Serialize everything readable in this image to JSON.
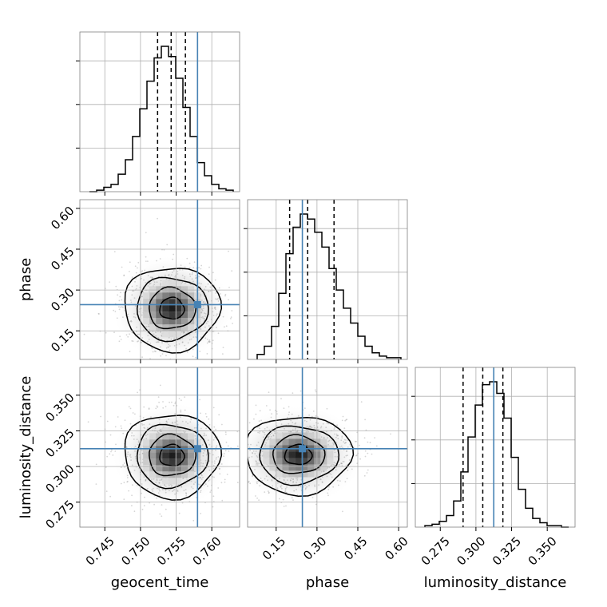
{
  "chart_data": {
    "type": "corner",
    "parameters": [
      "geocent_time",
      "phase",
      "luminosity_distance"
    ],
    "xlabels": [
      "geocent_time",
      "phase",
      "luminosity_distance"
    ],
    "ylabels": [
      "phase",
      "luminosity_distance"
    ],
    "ranges": {
      "geocent_time": [
        0.7415,
        0.7639
      ],
      "phase": [
        0.045,
        0.632
      ],
      "luminosity_distance": [
        0.2575,
        0.3695
      ]
    },
    "ticks": {
      "geocent_time": [
        "0.745",
        "0.750",
        "0.755",
        "0.760"
      ],
      "phase": [
        "0.15",
        "0.30",
        "0.45",
        "0.60"
      ],
      "luminosity_distance": [
        "0.275",
        "0.300",
        "0.325",
        "0.350"
      ]
    },
    "truths": {
      "geocent_time": 0.758,
      "phase": 0.2463,
      "luminosity_distance": 0.3125
    },
    "quantiles": {
      "geocent_time": [
        0.7524,
        0.7543,
        0.7563
      ],
      "phase": [
        0.1995,
        0.2658,
        0.3626
      ],
      "luminosity_distance": [
        0.291,
        0.3048,
        0.3189
      ]
    },
    "histograms": {
      "geocent_time": [
        0,
        1,
        3,
        5,
        12,
        22,
        38,
        57,
        76,
        92,
        100,
        93,
        78,
        58,
        38,
        20,
        11,
        5,
        2,
        1
      ],
      "phase": [
        3,
        8,
        20,
        40,
        64,
        80,
        88,
        85,
        77,
        68,
        55,
        42,
        31,
        22,
        14,
        8,
        4,
        2,
        1,
        1
      ],
      "luminosity_distance": [
        1,
        2,
        4,
        8,
        18,
        38,
        62,
        84,
        98,
        100,
        92,
        75,
        48,
        26,
        13,
        6,
        3,
        1,
        1,
        0
      ]
    },
    "peaks_2d": {
      "phase_vs_geocent_time": {
        "x": 0.7544,
        "y": 0.232
      },
      "luminosity_distance_vs_geocent_time": {
        "x": 0.7544,
        "y": 0.3077
      },
      "luminosity_distance_vs_phase": {
        "x": 0.231,
        "y": 0.3082
      }
    },
    "grid": true
  }
}
